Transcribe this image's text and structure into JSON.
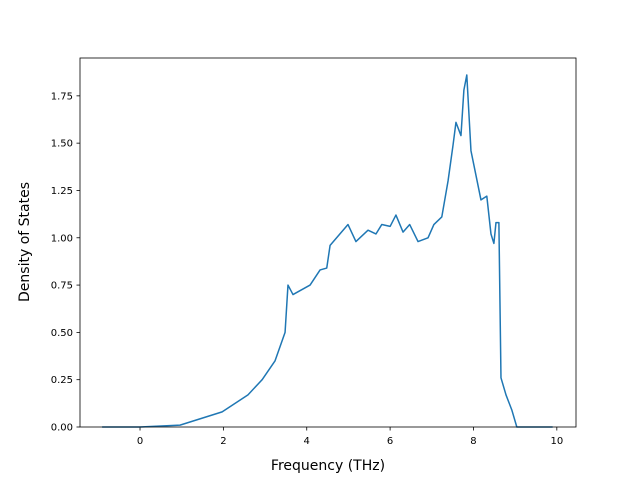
{
  "chart_data": {
    "type": "line",
    "x_label": "Frequency (THz)",
    "y_label": "Density of States",
    "xlim": [
      -1.44,
      10.46
    ],
    "ylim": [
      0,
      1.95
    ],
    "xticks": [
      0,
      2,
      4,
      6,
      8,
      10
    ],
    "yticks": [
      {
        "value": 0,
        "label": "0.00"
      },
      {
        "value": 0.25,
        "label": "0.25"
      },
      {
        "value": 0.5,
        "label": "0.50"
      },
      {
        "value": 0.75,
        "label": "0.75"
      },
      {
        "value": 1.0,
        "label": "1.00"
      },
      {
        "value": 1.25,
        "label": "1.25"
      },
      {
        "value": 1.5,
        "label": "1.50"
      },
      {
        "value": 1.75,
        "label": "1.75"
      }
    ],
    "grid": false,
    "x": [
      -0.91,
      0,
      0.96,
      1.97,
      2.59,
      2.93,
      3.24,
      3.48,
      3.55,
      3.67,
      4.08,
      4.32,
      4.48,
      4.56,
      4.99,
      5.18,
      5.47,
      5.66,
      5.8,
      6.0,
      6.14,
      6.31,
      6.47,
      6.67,
      6.91,
      7.05,
      7.24,
      7.39,
      7.51,
      7.58,
      7.7,
      7.77,
      7.84,
      7.94,
      8.06,
      8.18,
      8.32,
      8.42,
      8.49,
      8.54,
      8.61,
      8.66,
      8.78,
      8.92,
      9.04,
      9.9
    ],
    "series": [
      {
        "name": "DOS",
        "color": "#1f77b4",
        "values": [
          0,
          0,
          0.01,
          0.08,
          0.17,
          0.25,
          0.35,
          0.5,
          0.75,
          0.7,
          0.75,
          0.83,
          0.84,
          0.96,
          1.07,
          0.98,
          1.04,
          1.02,
          1.07,
          1.06,
          1.12,
          1.03,
          1.07,
          0.98,
          1.0,
          1.07,
          1.11,
          1.3,
          1.49,
          1.61,
          1.54,
          1.78,
          1.86,
          1.46,
          1.33,
          1.2,
          1.22,
          1.02,
          0.97,
          1.08,
          1.08,
          0.26,
          0.17,
          0.09,
          0,
          0
        ]
      }
    ]
  }
}
